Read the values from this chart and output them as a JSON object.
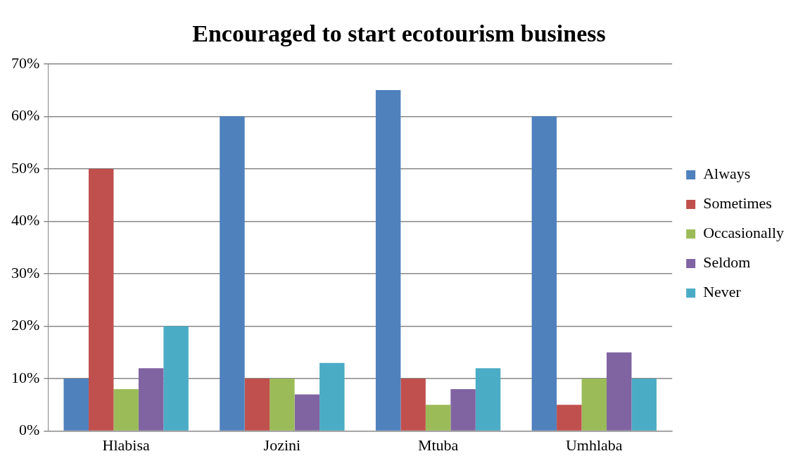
{
  "chart_data": {
    "type": "bar",
    "title": "Encouraged to start ecotourism business",
    "categories": [
      "Hlabisa",
      "Jozini",
      "Mtuba",
      "Umhlaba"
    ],
    "series": [
      {
        "name": "Always",
        "color": "#4f81bd",
        "values": [
          10,
          60,
          65,
          60
        ]
      },
      {
        "name": "Sometimes",
        "color": "#c0504d",
        "values": [
          50,
          10,
          10,
          5
        ]
      },
      {
        "name": "Occasionally",
        "color": "#9bbb59",
        "values": [
          8,
          10,
          5,
          10
        ]
      },
      {
        "name": "Seldom",
        "color": "#8064a2",
        "values": [
          12,
          7,
          8,
          15
        ]
      },
      {
        "name": "Never",
        "color": "#4bacc6",
        "values": [
          20,
          13,
          12,
          10
        ]
      }
    ],
    "ylim": [
      0,
      70
    ],
    "yticks": [
      {
        "value": 0,
        "label": "0%"
      },
      {
        "value": 10,
        "label": "10%"
      },
      {
        "value": 20,
        "label": "20%"
      },
      {
        "value": 30,
        "label": "30%"
      },
      {
        "value": 40,
        "label": "40%"
      },
      {
        "value": 50,
        "label": "50%"
      },
      {
        "value": 60,
        "label": "60%"
      },
      {
        "value": 70,
        "label": "70%"
      }
    ],
    "grid": "y",
    "legend": "right"
  }
}
